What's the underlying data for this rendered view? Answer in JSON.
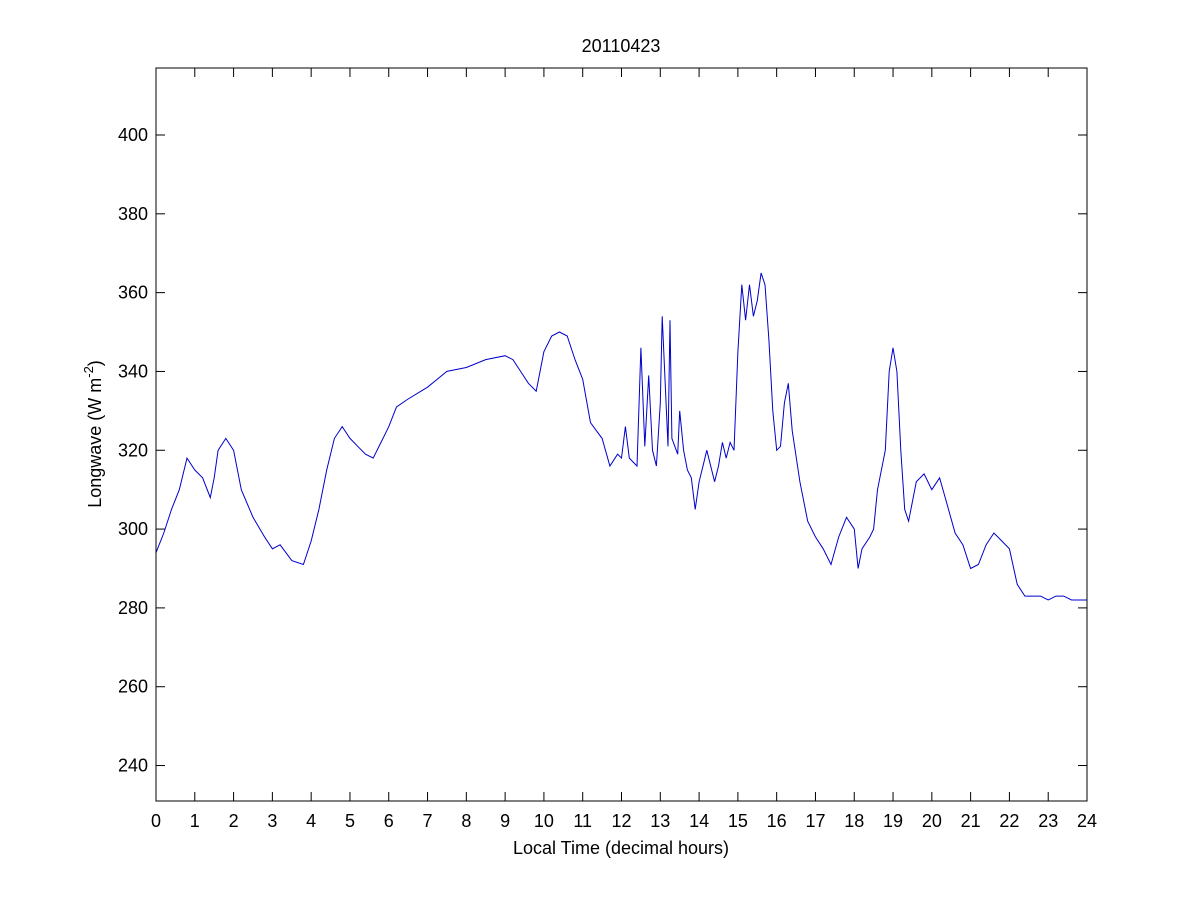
{
  "chart_data": {
    "type": "line",
    "title": "20110423",
    "xlabel": "Local Time (decimal hours)",
    "ylabel": {
      "prefix": "Longwave (W m",
      "superscript": "-2",
      "suffix": ")"
    },
    "xlim": [
      0,
      24
    ],
    "ylim": [
      231,
      417
    ],
    "xticks": [
      "0",
      "1",
      "2",
      "3",
      "4",
      "5",
      "6",
      "7",
      "8",
      "9",
      "10",
      "11",
      "12",
      "13",
      "14",
      "15",
      "16",
      "17",
      "18",
      "19",
      "20",
      "21",
      "22",
      "23",
      "24"
    ],
    "yticks": [
      "240",
      "260",
      "280",
      "300",
      "320",
      "340",
      "360",
      "380",
      "400"
    ],
    "grid": false,
    "line_color": "#0000cc",
    "series": [
      {
        "x": [
          0,
          0.2,
          0.4,
          0.6,
          0.8,
          1.0,
          1.2,
          1.4,
          1.5,
          1.6,
          1.8,
          2.0,
          2.2,
          2.5,
          2.8,
          3.0,
          3.2,
          3.5,
          3.8,
          4.0,
          4.2,
          4.4,
          4.6,
          4.8,
          5.0,
          5.2,
          5.4,
          5.6,
          5.8,
          6.0,
          6.2,
          6.5,
          7.0,
          7.5,
          8.0,
          8.5,
          9.0,
          9.2,
          9.4,
          9.6,
          9.8,
          10.0,
          10.2,
          10.4,
          10.6,
          10.8,
          11.0,
          11.2,
          11.5,
          11.7,
          11.9,
          12.0,
          12.1,
          12.2,
          12.4,
          12.5,
          12.6,
          12.7,
          12.8,
          12.9,
          13.0,
          13.05,
          13.2,
          13.25,
          13.3,
          13.45,
          13.5,
          13.6,
          13.7,
          13.8,
          13.9,
          14.0,
          14.1,
          14.2,
          14.3,
          14.4,
          14.5,
          14.6,
          14.7,
          14.8,
          14.9,
          15.0,
          15.1,
          15.2,
          15.3,
          15.4,
          15.5,
          15.6,
          15.7,
          15.8,
          15.9,
          16.0,
          16.1,
          16.2,
          16.3,
          16.4,
          16.6,
          16.8,
          17.0,
          17.2,
          17.4,
          17.6,
          17.8,
          18.0,
          18.1,
          18.2,
          18.4,
          18.5,
          18.6,
          18.8,
          18.9,
          19.0,
          19.1,
          19.2,
          19.3,
          19.4,
          19.6,
          19.8,
          20.0,
          20.2,
          20.4,
          20.6,
          20.8,
          21.0,
          21.2,
          21.4,
          21.6,
          21.8,
          22.0,
          22.2,
          22.4,
          22.6,
          22.8,
          23.0,
          23.2,
          23.4,
          23.6,
          23.8,
          24.0
        ],
        "y": [
          294,
          299,
          305,
          310,
          318,
          315,
          313,
          308,
          313,
          320,
          323,
          320,
          310,
          303,
          298,
          295,
          296,
          292,
          291,
          297,
          305,
          315,
          323,
          326,
          323,
          321,
          319,
          318,
          322,
          326,
          331,
          333,
          336,
          340,
          341,
          343,
          344,
          343,
          340,
          337,
          335,
          345,
          349,
          350,
          349,
          343,
          338,
          327,
          323,
          316,
          319,
          318,
          326,
          318,
          316,
          346,
          321,
          339,
          320,
          316,
          332,
          354,
          321,
          353,
          323,
          319,
          330,
          320,
          315,
          313,
          305,
          312,
          316,
          320,
          316,
          312,
          316,
          322,
          318,
          322,
          320,
          345,
          362,
          353,
          362,
          354,
          358,
          365,
          362,
          348,
          330,
          320,
          321,
          332,
          337,
          325,
          312,
          302,
          298,
          295,
          291,
          298,
          303,
          300,
          290,
          295,
          298,
          300,
          310,
          320,
          340,
          346,
          340,
          320,
          305,
          302,
          312,
          314,
          310,
          313,
          306,
          299,
          296,
          290,
          291,
          296,
          299,
          297,
          295,
          286,
          283,
          283,
          283,
          282,
          283,
          283,
          282,
          282,
          282
        ]
      }
    ]
  }
}
